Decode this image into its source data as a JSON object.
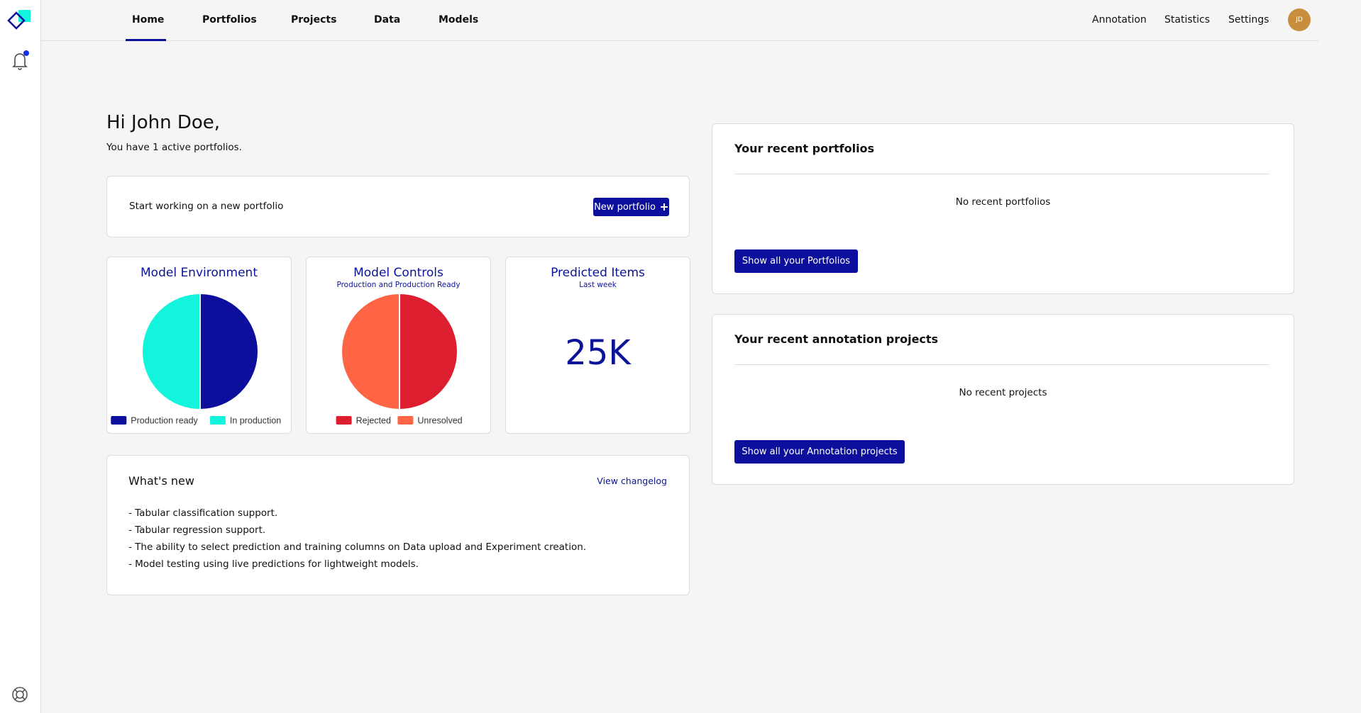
{
  "nav": {
    "left": [
      "Home",
      "Portfolios",
      "Projects",
      "Data",
      "Models"
    ],
    "right": [
      "Annotation",
      "Statistics",
      "Settings"
    ],
    "avatar": "JD"
  },
  "greeting": {
    "title": "Hi John Doe,",
    "subtitle": "You have 1 active portfolios."
  },
  "new_portfolio": {
    "text": "Start working on a new portfolio",
    "button": "New portfolio"
  },
  "chart_data": [
    {
      "type": "pie",
      "title": "Model Environment",
      "categories": [
        "Production ready",
        "In production"
      ],
      "values": [
        50,
        50
      ],
      "colors": [
        "#0b0f9c",
        "#12f5dc"
      ]
    },
    {
      "type": "pie",
      "title": "Model Controls",
      "subtitle": "Production and Production Ready",
      "categories": [
        "Rejected",
        "Unresolved"
      ],
      "values": [
        50,
        50
      ],
      "colors": [
        "#dc1e2e",
        "#ff6444"
      ]
    }
  ],
  "predicted_items": {
    "title": "Predicted Items",
    "subtitle": "Last week",
    "value": "25K"
  },
  "whats_new": {
    "title": "What's new",
    "link": "View changelog",
    "items": [
      "- Tabular classification support.",
      "- Tabular regression support.",
      "- The ability to select prediction and training columns on Data upload and Experiment creation.",
      "- Model testing using live predictions for lightweight models."
    ]
  },
  "recent_portfolios": {
    "title": "Your recent portfolios",
    "empty": "No recent portfolios",
    "button": "Show all your Portfolios"
  },
  "recent_annotation": {
    "title": "Your recent annotation projects",
    "empty": "No recent projects",
    "button": "Show all your Annotation projects"
  }
}
